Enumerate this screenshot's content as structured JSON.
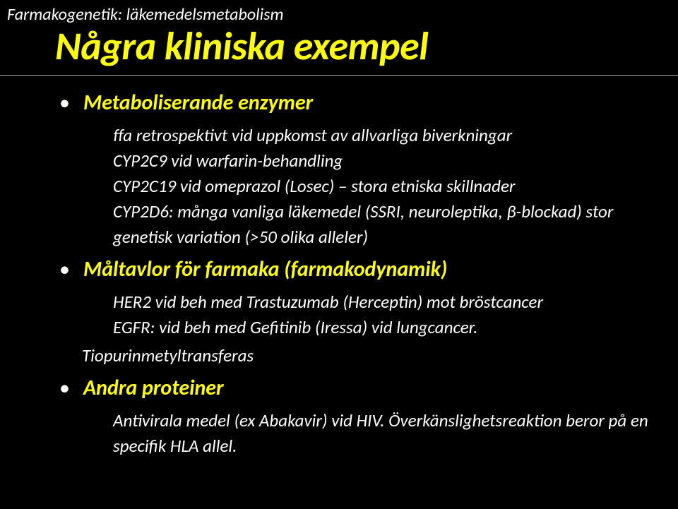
{
  "colors": {
    "background": "#000000",
    "title": "#ffff00",
    "text": "#ffffff",
    "rule": "#b0b0b0"
  },
  "topLabel": "Farmakogenetik: läkemedelsmetabolism",
  "title": "Några kliniska exempel",
  "sections": [
    {
      "heading": "Metaboliserande enzymer",
      "lines": [
        "ffa retrospektivt vid uppkomst av allvarliga biverkningar",
        "CYP2C9 vid warfarin-behandling",
        "CYP2C19 vid omeprazol (Losec) – stora etniska skillnader",
        "CYP2D6: många vanliga läkemedel (SSRI, neuroleptika, β-blockad) stor genetisk variation (>50 olika alleler)"
      ]
    },
    {
      "heading": "Måltavlor för farmaka (farmakodynamik)",
      "lines": [
        "HER2 vid beh med Trastuzumab (Herceptin) mot bröstcancer",
        "EGFR: vid beh med Gefitinib (Iressa) vid lungcancer."
      ],
      "outdent": "Tiopurinmetyltransferas"
    },
    {
      "heading": "Andra proteiner",
      "lines": [
        "Antivirala medel (ex Abakavir) vid HIV. Överkänslighetsreaktion beror på en specifik HLA allel."
      ]
    }
  ]
}
